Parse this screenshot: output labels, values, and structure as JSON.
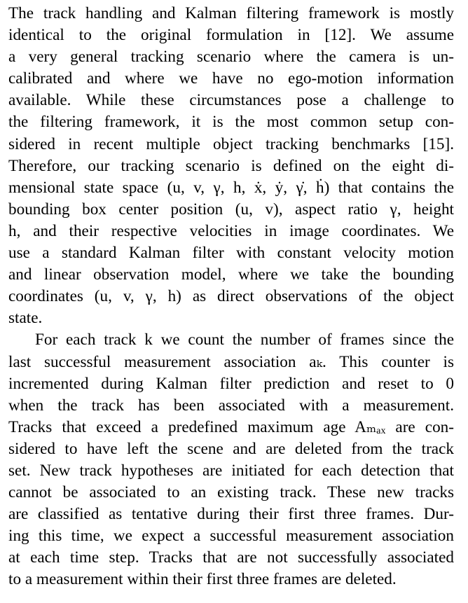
{
  "paragraphs": [
    {
      "indent": false,
      "lines": [
        "The track handling and Kalman filtering framework is mostly",
        "identical to the original formulation in [12].  We assume",
        "a very general tracking scenario where the camera is un-",
        "calibrated and where we have no ego-motion information",
        "available.  While these circumstances pose a challenge to",
        "the filtering framework, it is the most common setup con-",
        "sidered in recent multiple object tracking benchmarks [15].",
        "Therefore, our tracking scenario is defined on the eight di-",
        "mensional state space (u, v, γ, h, ẋ, ẏ, γ̇, ḣ) that contains the",
        "bounding box center position (u, v), aspect ratio γ, height",
        "h, and their respective velocities in image coordinates.  We",
        "use a standard Kalman filter with constant velocity motion",
        "and linear observation model, where we take the bounding",
        "coordinates (u, v, γ, h) as direct observations of the object",
        "state."
      ]
    },
    {
      "indent": true,
      "lines": [
        "For each track k we count the number of frames since the",
        "last successful measurement association aₖ.  This counter is",
        "incremented during Kalman filter prediction and reset to 0",
        "when the track has been associated with a measurement.",
        "Tracks that exceed a predefined maximum age Aₘₐₓ are con-",
        "sidered to have left the scene and are deleted from the track",
        "set. New track hypotheses are initiated for each detection that",
        "cannot be associated to an existing track.  These new tracks",
        "are classified as tentative during their first three frames. Dur-",
        "ing this time, we expect a successful measurement association",
        "at each time step. Tracks that are not successfully associated",
        "to a measurement within their first three frames are deleted."
      ]
    }
  ]
}
